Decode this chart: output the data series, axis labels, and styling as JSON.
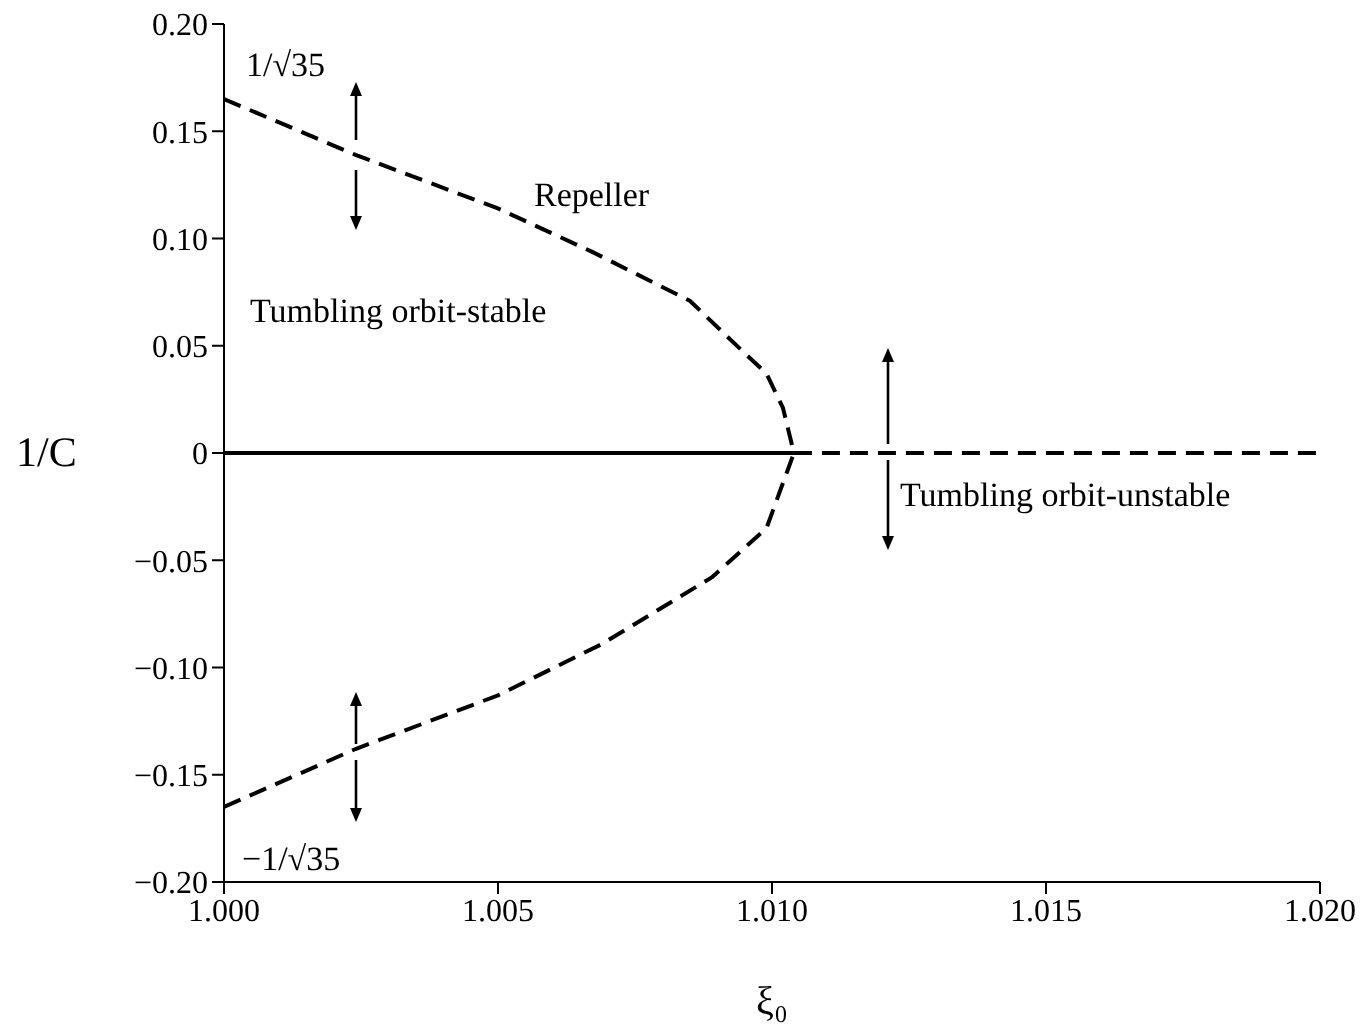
{
  "chart_data": {
    "type": "line",
    "xlabel": "ξ₀",
    "ylabel": "1/C",
    "xlim": [
      1.0,
      1.02
    ],
    "xticks": [
      {
        "value": 1.0,
        "label": "1.000"
      },
      {
        "value": 1.005,
        "label": "1.005"
      },
      {
        "value": 1.01,
        "label": "1.010"
      },
      {
        "value": 1.015,
        "label": "1.015"
      },
      {
        "value": 1.02,
        "label": "1.020"
      }
    ],
    "ylim": [
      -0.2,
      0.2
    ],
    "yticks": [
      {
        "value": -0.2,
        "label": "−0.20"
      },
      {
        "value": -0.15,
        "label": "−0.15"
      },
      {
        "value": -0.1,
        "label": "−0.10"
      },
      {
        "value": -0.05,
        "label": "−0.05"
      },
      {
        "value": 0,
        "label": "0"
      },
      {
        "value": 0.05,
        "label": "0.05"
      },
      {
        "value": 0.1,
        "label": "0.10"
      },
      {
        "value": 0.15,
        "label": "0.15"
      },
      {
        "value": 0.2,
        "label": "0.20"
      }
    ],
    "marker": "none",
    "series": [
      {
        "color": "#000000",
        "line_style": "dashed",
        "x": [
          1.0,
          1.0024,
          1.005,
          1.0067,
          1.0085,
          1.0094,
          1.0099,
          1.0102,
          1.0104
        ],
        "values": [
          0.165,
          0.139,
          0.114,
          0.094,
          0.071,
          0.049,
          0.037,
          0.021,
          0
        ]
      },
      {
        "color": "#000000",
        "line_style": "dashed",
        "x": [
          1.0,
          1.0024,
          1.005,
          1.0069,
          1.0089,
          1.0099,
          1.0104
        ],
        "values": [
          -0.165,
          -0.138,
          -0.113,
          -0.089,
          -0.058,
          -0.035,
          0
        ]
      },
      {
        "color": "#000000",
        "line_style": "solid",
        "x": [
          1.0,
          1.0104
        ],
        "values": [
          0,
          0
        ]
      },
      {
        "color": "#000000",
        "line_style": "dashed",
        "x": [
          1.0104,
          1.02
        ],
        "values": [
          0,
          0
        ]
      }
    ],
    "annotations": [
      "1/√35",
      "Repeller",
      "Tumbling orbit-stable",
      "Tumbling orbit-unstable",
      "−1/√35"
    ]
  }
}
